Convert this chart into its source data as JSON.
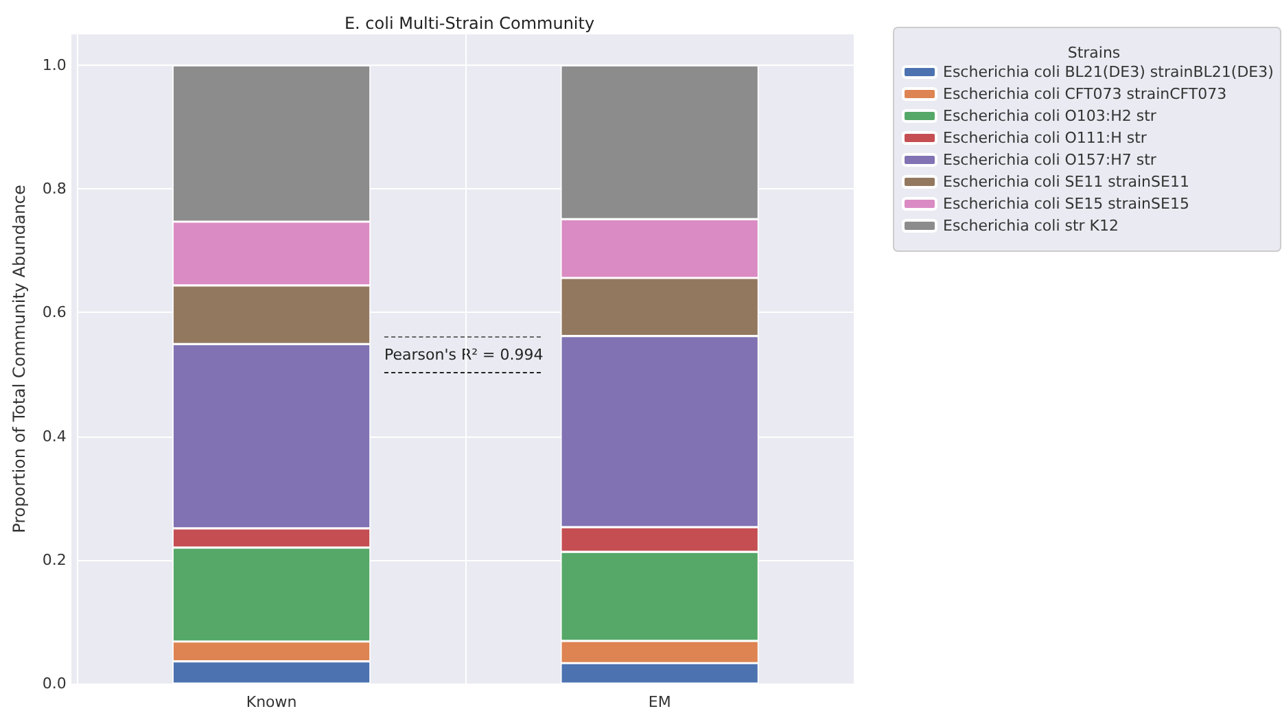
{
  "chart_data": {
    "type": "bar",
    "title": "E. coli Multi-Strain Community",
    "ylabel": "Proportion of Total Community Abundance",
    "legend_title": "Strains",
    "categories": [
      "Known",
      "EM"
    ],
    "stacked": true,
    "grid": true,
    "legend": "top right",
    "ylim": [
      0,
      1.05
    ],
    "yticks": [
      {
        "value": 0,
        "label": "0.0"
      },
      0.2,
      0.4,
      0.6,
      0.8,
      {
        "value": 1,
        "label": "1.0"
      }
    ],
    "annotations": [
      "Pearson's R² = 0.994"
    ],
    "series": [
      {
        "name": "Escherichia coli BL21(DE3) strainBL21(DE3)",
        "color": "#4c72b0",
        "values": [
          0.036,
          0.033
        ]
      },
      {
        "name": "Escherichia coli CFT073 strainCFT073",
        "color": "#dd8452",
        "values": [
          0.032,
          0.036
        ]
      },
      {
        "name": "Escherichia coli O103:H2 str",
        "color": "#55a868",
        "values": [
          0.152,
          0.144
        ]
      },
      {
        "name": "Escherichia coli O111:H str",
        "color": "#c44e52",
        "values": [
          0.031,
          0.04
        ]
      },
      {
        "name": "Escherichia coli O157:H7 str",
        "color": "#8172b3",
        "values": [
          0.298,
          0.309
        ]
      },
      {
        "name": "Escherichia coli SE11 strainSE11",
        "color": "#937860",
        "values": [
          0.095,
          0.094
        ]
      },
      {
        "name": "Escherichia coli SE15 strainSE15",
        "color": "#da8bc3",
        "values": [
          0.103,
          0.095
        ]
      },
      {
        "name": "Escherichia coli str K12",
        "color": "#8c8c8c",
        "values": [
          0.253,
          0.249
        ]
      }
    ]
  }
}
